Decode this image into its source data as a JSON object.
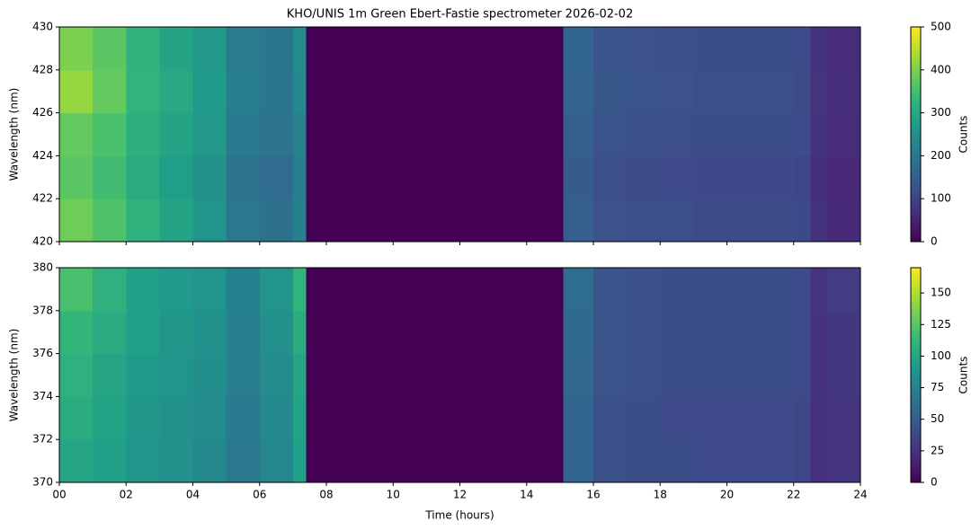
{
  "chart_data": [
    {
      "type": "heatmap",
      "title": "KHO/UNIS 1m Green Ebert-Fastie spectrometer 2026-02-02",
      "ylabel": "Wavelength (nm)",
      "colormap": "viridis",
      "colorbar_label": "Counts",
      "sharex": true,
      "x_edges": [
        0,
        1,
        2,
        3,
        4,
        5,
        6,
        7,
        7.4,
        15.1,
        16,
        17,
        18,
        19,
        20,
        21,
        22,
        22.5,
        23,
        24
      ],
      "y_edges": [
        420,
        422,
        424,
        426,
        428,
        430
      ],
      "values": [
        [
          390,
          360,
          320,
          290,
          260,
          200,
          185,
          220,
          0,
          150,
          125,
          120,
          120,
          115,
          115,
          115,
          110,
          70,
          60
        ],
        [
          370,
          345,
          305,
          280,
          250,
          190,
          175,
          215,
          0,
          145,
          120,
          115,
          112,
          110,
          110,
          110,
          105,
          65,
          55
        ],
        [
          380,
          355,
          315,
          290,
          265,
          205,
          190,
          225,
          0,
          150,
          128,
          122,
          120,
          118,
          118,
          118,
          112,
          72,
          62
        ],
        [
          420,
          380,
          325,
          300,
          270,
          215,
          195,
          235,
          0,
          160,
          135,
          128,
          125,
          120,
          120,
          120,
          115,
          75,
          65
        ],
        [
          400,
          370,
          320,
          290,
          265,
          210,
          195,
          240,
          0,
          165,
          132,
          125,
          122,
          118,
          118,
          118,
          112,
          72,
          62
        ]
      ],
      "ylim": [
        420,
        430
      ],
      "yticks": [
        420,
        422,
        424,
        426,
        428,
        430
      ],
      "clim": [
        0,
        500
      ],
      "cticks": [
        0,
        100,
        200,
        300,
        400,
        500
      ]
    },
    {
      "type": "heatmap",
      "xlabel": "Time (hours)",
      "ylabel": "Wavelength (nm)",
      "colormap": "viridis",
      "colorbar_label": "Counts",
      "x_edges": [
        0,
        1,
        2,
        3,
        4,
        5,
        6,
        7,
        7.4,
        15.1,
        16,
        17,
        18,
        19,
        20,
        21,
        22,
        22.5,
        23,
        24
      ],
      "y_edges": [
        370,
        372,
        374,
        376,
        378,
        380
      ],
      "values": [
        [
          100,
          95,
          88,
          85,
          80,
          68,
          78,
          95,
          0,
          55,
          42,
          40,
          40,
          38,
          38,
          38,
          36,
          24,
          26
        ],
        [
          105,
          98,
          90,
          86,
          82,
          70,
          80,
          98,
          0,
          55,
          42,
          40,
          38,
          38,
          38,
          38,
          36,
          24,
          26
        ],
        [
          108,
          100,
          92,
          88,
          84,
          72,
          82,
          100,
          0,
          57,
          44,
          42,
          40,
          40,
          40,
          40,
          38,
          25,
          28
        ],
        [
          112,
          104,
          95,
          90,
          86,
          74,
          85,
          105,
          0,
          58,
          45,
          42,
          40,
          40,
          40,
          40,
          38,
          25,
          28
        ],
        [
          120,
          108,
          96,
          92,
          88,
          75,
          88,
          110,
          0,
          60,
          45,
          42,
          40,
          40,
          40,
          40,
          38,
          26,
          30
        ]
      ],
      "xlim": [
        0,
        24
      ],
      "xticks": [
        {
          "value": 0,
          "label": "00"
        },
        {
          "value": 2,
          "label": "02"
        },
        {
          "value": 4,
          "label": "04"
        },
        {
          "value": 6,
          "label": "06"
        },
        {
          "value": 8,
          "label": "08"
        },
        {
          "value": 10,
          "label": "10"
        },
        {
          "value": 12,
          "label": "12"
        },
        {
          "value": 14,
          "label": "14"
        },
        {
          "value": 16,
          "label": "16"
        },
        {
          "value": 18,
          "label": "18"
        },
        {
          "value": 20,
          "label": "20"
        },
        {
          "value": 22,
          "label": "22"
        },
        {
          "value": 24,
          "label": "24"
        }
      ],
      "ylim": [
        370,
        380
      ],
      "yticks": [
        370,
        372,
        374,
        376,
        378,
        380
      ],
      "clim": [
        0,
        170
      ],
      "cticks": [
        0,
        25,
        50,
        75,
        100,
        125,
        150
      ]
    }
  ]
}
